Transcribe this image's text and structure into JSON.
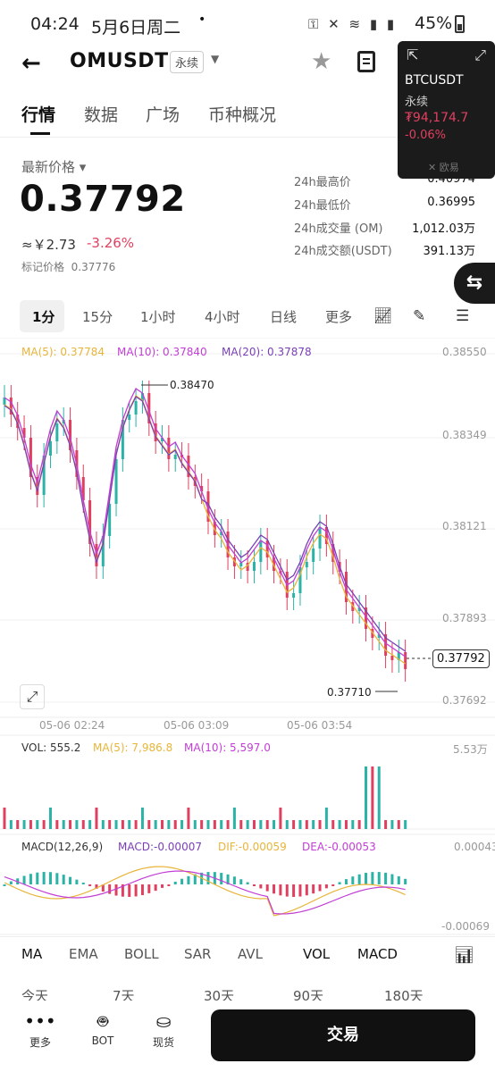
{
  "status": {
    "time": "04:24",
    "date": "5月6日周二",
    "dot": "•",
    "icons": "⚿ ✕ ≋ ▮ ▮",
    "battery": "45%"
  },
  "header": {
    "symbol": "OMUSDT",
    "type": "永续",
    "back": "←",
    "star": "★"
  },
  "tabs": [
    "行情",
    "数据",
    "广场",
    "币种概况"
  ],
  "floating": {
    "symbol": "BTCUSDT",
    "type": "永续",
    "price": "₮94,174.7",
    "change": "-0.06%",
    "logo": "欧易"
  },
  "price": {
    "label": "最新价格 ▾",
    "last": "0.37792",
    "cny": "≈￥2.73",
    "change": "-3.26%",
    "mark_label": "标记价格",
    "mark": "0.37776"
  },
  "stats": [
    {
      "label": "24h最高价",
      "value": "0.40974"
    },
    {
      "label": "24h最低价",
      "value": "0.36995"
    },
    {
      "label": "24h成交量 (OM)",
      "value": "1,012.03万"
    },
    {
      "label": "24h成交额(USDT)",
      "value": "391.13万"
    }
  ],
  "intervals": [
    "1分",
    "15分",
    "1小时",
    "4小时",
    "日线",
    "更多"
  ],
  "chart_legend": {
    "ma5": "MA(5): 0.37784",
    "ma10": "MA(10): 0.37840",
    "ma20": "MA(20): 0.37878"
  },
  "y_axis": [
    "0.38550",
    "0.38349",
    "0.38121",
    "0.37893",
    "0.37692"
  ],
  "x_axis": [
    "05-06 02:24",
    "05-06 03:09",
    "05-06 03:54"
  ],
  "high_marker": "0.38470",
  "low_marker": "0.37710",
  "current_price_tag": "0.37792",
  "volume_legend": {
    "vol": "VOL: 555.2",
    "ma5": "MA(5): 7,986.8",
    "ma10": "MA(10): 5,597.0",
    "max": "5.53万"
  },
  "macd_legend": {
    "name": "MACD(12,26,9)",
    "macd": "MACD:-0.00007",
    "dif": "DIF:-0.00059",
    "dea": "DEA:-0.00053",
    "top": "0.00043",
    "bottom": "-0.00069"
  },
  "indicators": [
    "MA",
    "EMA",
    "BOLL",
    "SAR",
    "AVL",
    "VOL",
    "MACD"
  ],
  "ranges": [
    "今天",
    "7天",
    "30天",
    "90天",
    "180天"
  ],
  "bottom": {
    "more": "更多",
    "bot": "BOT",
    "spot": "现货",
    "trade": "交易"
  },
  "colors": {
    "up": "#2ab3a6",
    "down": "#e0405f",
    "ma5": "#e8b53a",
    "ma10": "#c23ed6",
    "ma20": "#7a3fb6"
  },
  "chart_data": {
    "type": "candlestick",
    "x": [
      "05-06 02:24",
      "05-06 03:09",
      "05-06 03:54"
    ],
    "ylim": [
      0.37692,
      0.3855
    ],
    "series": [
      {
        "name": "MA(5)",
        "last": 0.37784
      },
      {
        "name": "MA(10)",
        "last": 0.3784
      },
      {
        "name": "MA(20)",
        "last": 0.37878
      }
    ],
    "high": 0.3847,
    "low": 0.3771,
    "last": 0.37792
  }
}
